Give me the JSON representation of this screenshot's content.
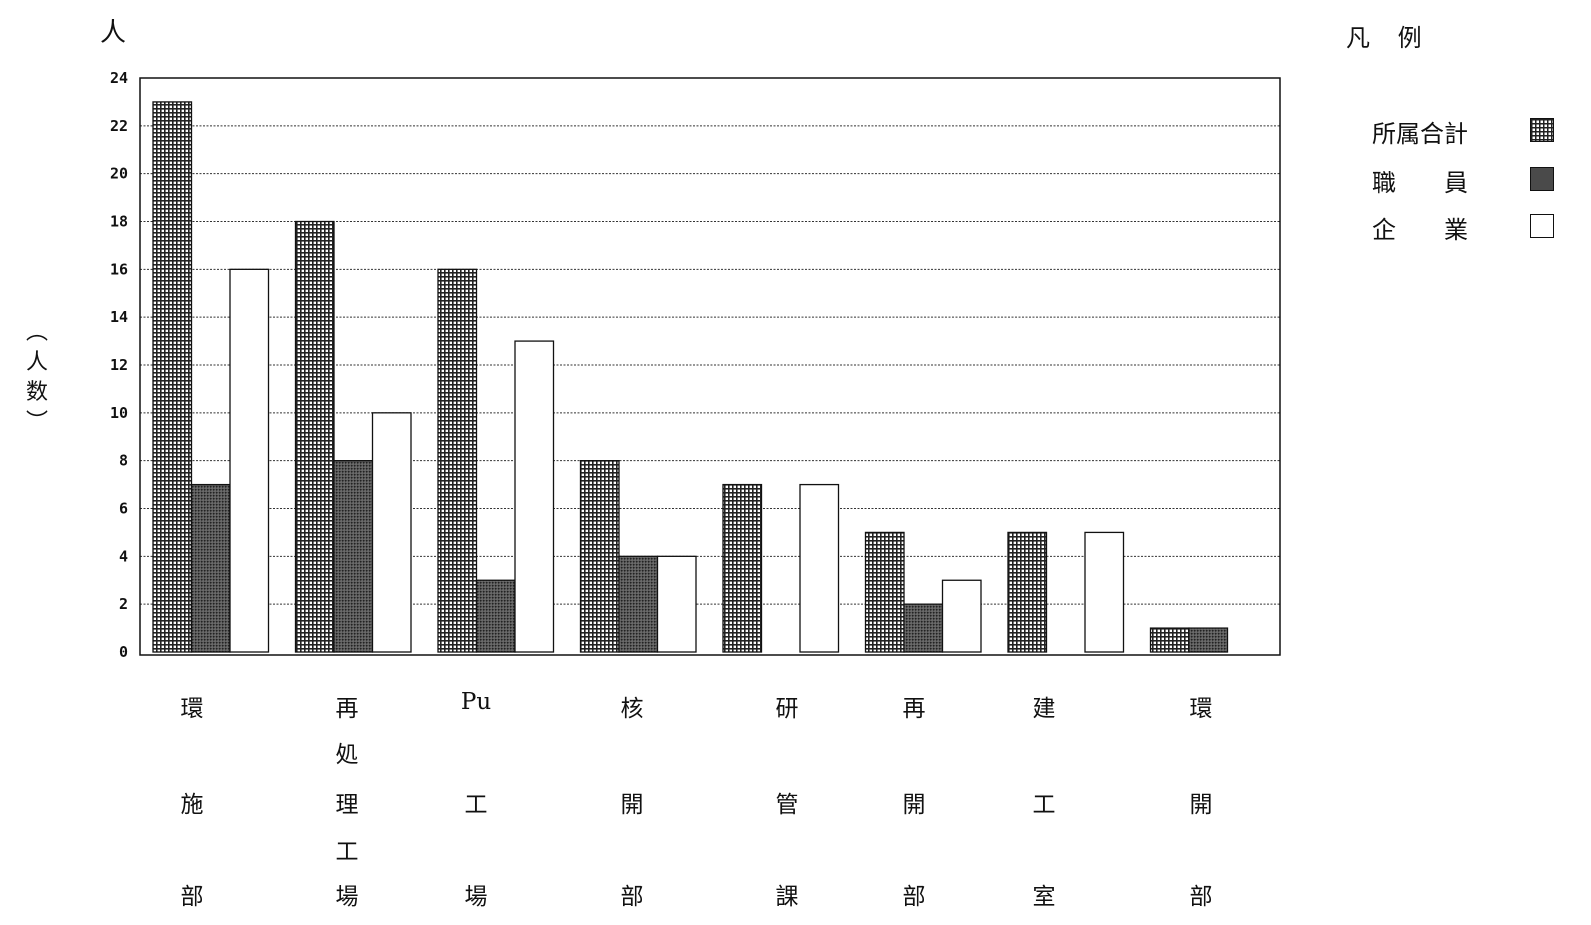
{
  "unit_top": "人",
  "y_axis_label_chars": [
    "︵",
    "人",
    "数",
    "︶"
  ],
  "legend": {
    "title": "凡 例",
    "items": [
      {
        "label": "所属合計",
        "pattern": "grid"
      },
      {
        "label": "職　　員",
        "pattern": "dark"
      },
      {
        "label": "企　　業",
        "pattern": "white"
      }
    ]
  },
  "colors": {
    "grid_fill": "#9a9a9a",
    "dark_fill": "#4a4a4a",
    "white_fill": "#ffffff",
    "axis": "#111111"
  },
  "chart_data": {
    "type": "bar",
    "categories": [
      [
        "環",
        "施",
        "部"
      ],
      [
        "再",
        "処",
        "理",
        "工",
        "場"
      ],
      [
        "Pu",
        "工",
        "場"
      ],
      [
        "核",
        "開",
        "部"
      ],
      [
        "研",
        "管",
        "課"
      ],
      [
        "再",
        "開",
        "部"
      ],
      [
        "建",
        "工",
        "室"
      ],
      [
        "環",
        "開",
        "部"
      ]
    ],
    "series": [
      {
        "name": "所属合計",
        "values": [
          23,
          18,
          16,
          8,
          7,
          5,
          5,
          1
        ]
      },
      {
        "name": "職　　員",
        "values": [
          7,
          8,
          3,
          4,
          0,
          2,
          0,
          1
        ]
      },
      {
        "name": "企　　業",
        "values": [
          16,
          10,
          13,
          4,
          7,
          3,
          5,
          0
        ]
      }
    ],
    "yticks": [
      0,
      2,
      4,
      6,
      8,
      10,
      12,
      14,
      16,
      18,
      20,
      22,
      24
    ],
    "ylim": [
      0,
      24
    ],
    "grid": true
  }
}
